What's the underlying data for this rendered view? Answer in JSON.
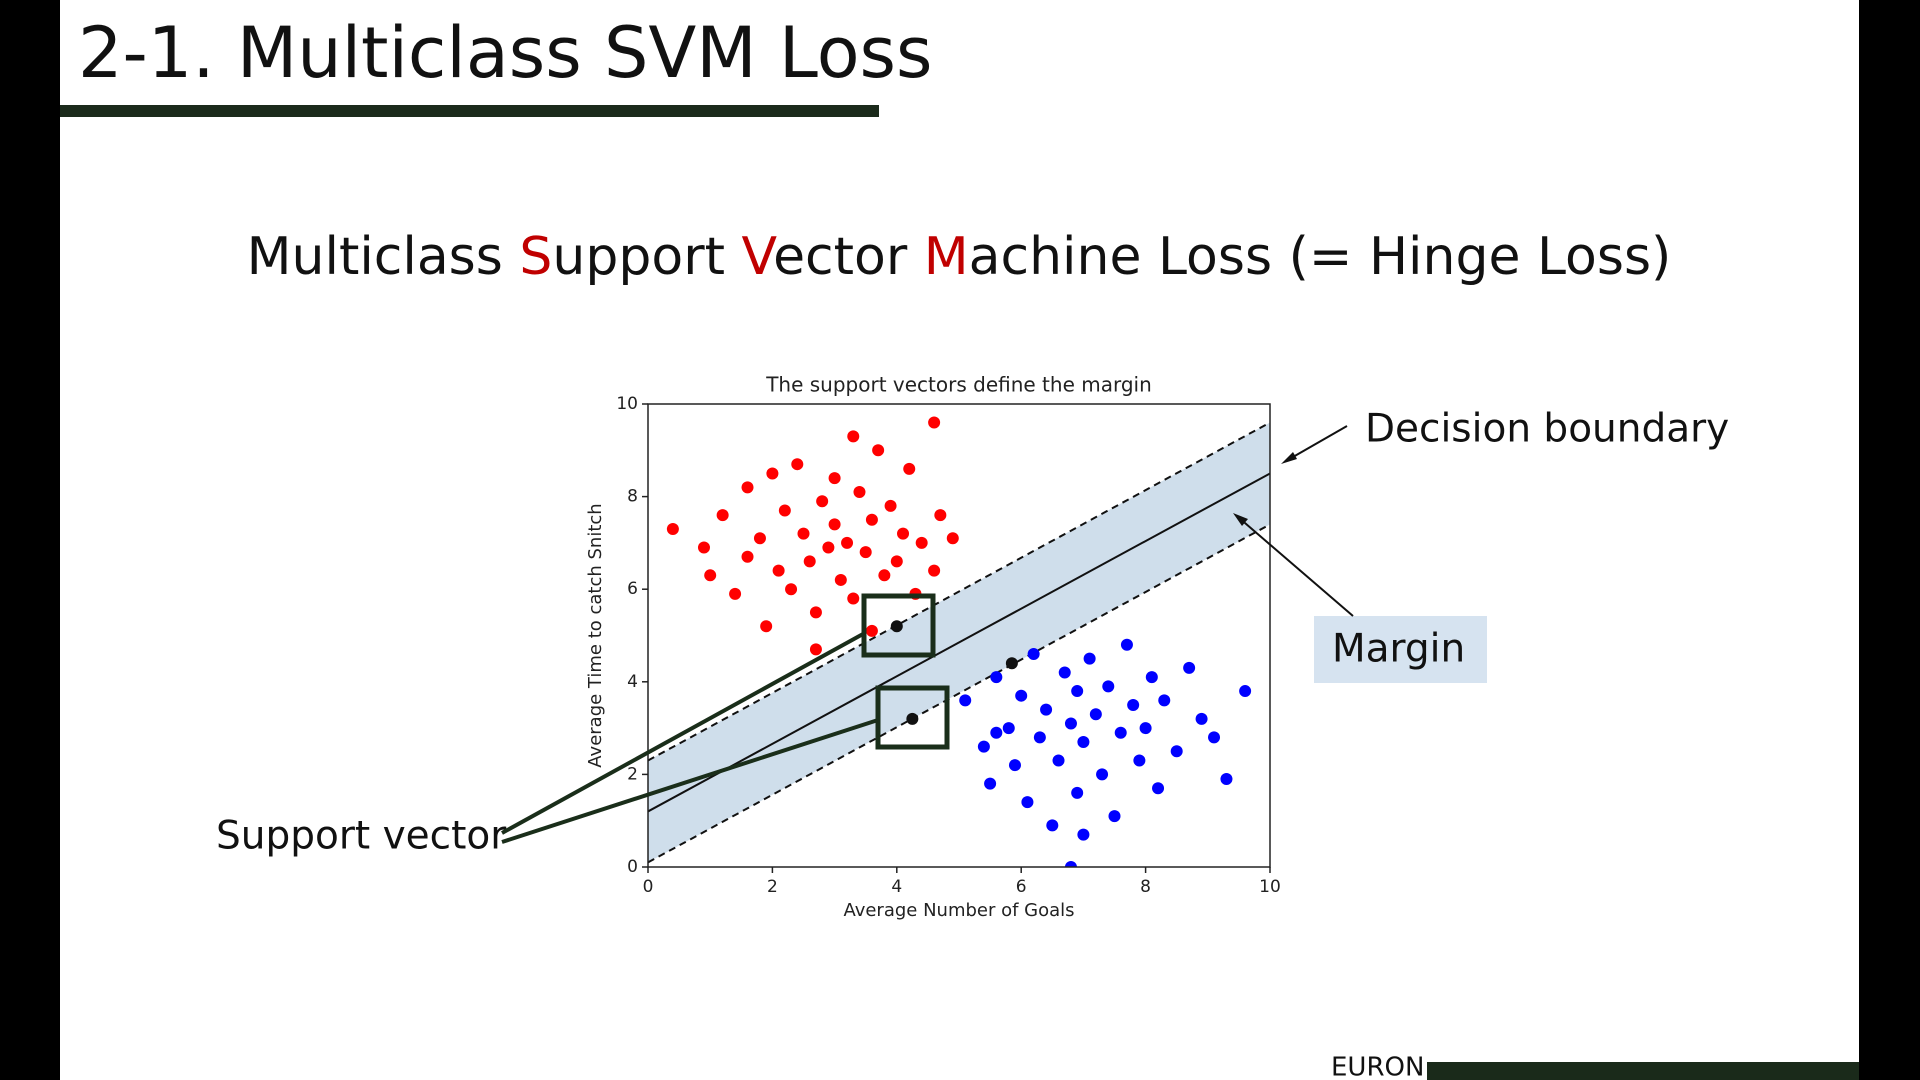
{
  "header": {
    "title": "2-1. Multiclass SVM Loss"
  },
  "subtitle": {
    "segments": [
      {
        "text": "Multiclass ",
        "color": "#111111"
      },
      {
        "text": "S",
        "color": "#c00000"
      },
      {
        "text": "upport ",
        "color": "#111111"
      },
      {
        "text": "V",
        "color": "#c00000"
      },
      {
        "text": "ector ",
        "color": "#111111"
      },
      {
        "text": "M",
        "color": "#c00000"
      },
      {
        "text": "achine Loss (= Hinge Loss)",
        "color": "#111111"
      }
    ]
  },
  "chart_data": {
    "type": "scatter",
    "title": "The support vectors define the margin",
    "x_label": "Average Number of Goals",
    "y_label": "Average Time to catch Snitch",
    "xlim": [
      0,
      10
    ],
    "ylim": [
      0,
      10
    ],
    "xticks": [
      0,
      2,
      4,
      6,
      8,
      10
    ],
    "yticks": [
      0,
      2,
      4,
      6,
      8,
      10
    ],
    "band_color": "#cfdeeb",
    "series": [
      {
        "color": "#ff0000",
        "x": [
          0.4,
          0.9,
          1.0,
          1.2,
          1.4,
          1.6,
          1.6,
          1.8,
          1.9,
          2.0,
          2.1,
          2.2,
          2.3,
          2.4,
          2.5,
          2.6,
          2.7,
          2.8,
          2.9,
          3.0,
          3.0,
          3.1,
          3.2,
          3.3,
          3.4,
          3.5,
          3.6,
          3.7,
          3.8,
          3.9,
          4.0,
          4.1,
          4.2,
          4.3,
          4.4,
          4.6,
          4.6,
          4.7,
          4.9,
          3.6,
          2.7,
          3.3
        ],
        "values": [
          7.3,
          6.9,
          6.3,
          7.6,
          5.9,
          8.2,
          6.7,
          7.1,
          5.2,
          8.5,
          6.4,
          7.7,
          6.0,
          8.7,
          7.2,
          6.6,
          5.5,
          7.9,
          6.9,
          8.4,
          7.4,
          6.2,
          7.0,
          5.8,
          8.1,
          6.8,
          7.5,
          9.0,
          6.3,
          7.8,
          6.6,
          7.2,
          8.6,
          5.9,
          7.0,
          6.4,
          9.6,
          7.6,
          7.1,
          5.1,
          4.7,
          9.3
        ]
      },
      {
        "color": "#0000ff",
        "x": [
          5.1,
          5.4,
          5.5,
          5.6,
          5.8,
          5.9,
          6.0,
          6.1,
          6.2,
          6.3,
          6.4,
          6.5,
          6.6,
          6.7,
          6.8,
          6.9,
          6.9,
          7.0,
          7.1,
          7.2,
          7.3,
          7.4,
          7.5,
          7.6,
          7.7,
          7.8,
          7.9,
          8.0,
          8.1,
          8.2,
          8.3,
          8.5,
          8.7,
          8.9,
          9.1,
          9.3,
          9.6,
          7.0,
          6.8,
          5.6
        ],
        "values": [
          3.6,
          2.6,
          1.8,
          4.1,
          3.0,
          2.2,
          3.7,
          1.4,
          4.6,
          2.8,
          3.4,
          0.9,
          2.3,
          4.2,
          3.1,
          1.6,
          3.8,
          2.7,
          4.5,
          3.3,
          2.0,
          3.9,
          1.1,
          2.9,
          4.8,
          3.5,
          2.3,
          3.0,
          4.1,
          1.7,
          3.6,
          2.5,
          4.3,
          3.2,
          2.8,
          1.9,
          3.8,
          0.7,
          0,
          2.9
        ]
      },
      {
        "color": "#111111",
        "x": [
          4.0,
          4.25,
          5.85
        ],
        "values": [
          5.2,
          3.2,
          4.4
        ]
      }
    ],
    "lines": [
      {
        "style": "solid",
        "x": [
          0,
          10
        ],
        "values": [
          1.2,
          8.5
        ]
      },
      {
        "style": "dashed",
        "x": [
          0,
          10
        ],
        "values": [
          2.3,
          9.6
        ]
      },
      {
        "style": "dashed",
        "x": [
          0,
          10
        ],
        "values": [
          0.1,
          7.4
        ]
      }
    ]
  },
  "annotations": {
    "decision_boundary": "Decision boundary",
    "margin": "Margin",
    "support_vector": "Support vector"
  },
  "footer": {
    "text": "EURON"
  }
}
